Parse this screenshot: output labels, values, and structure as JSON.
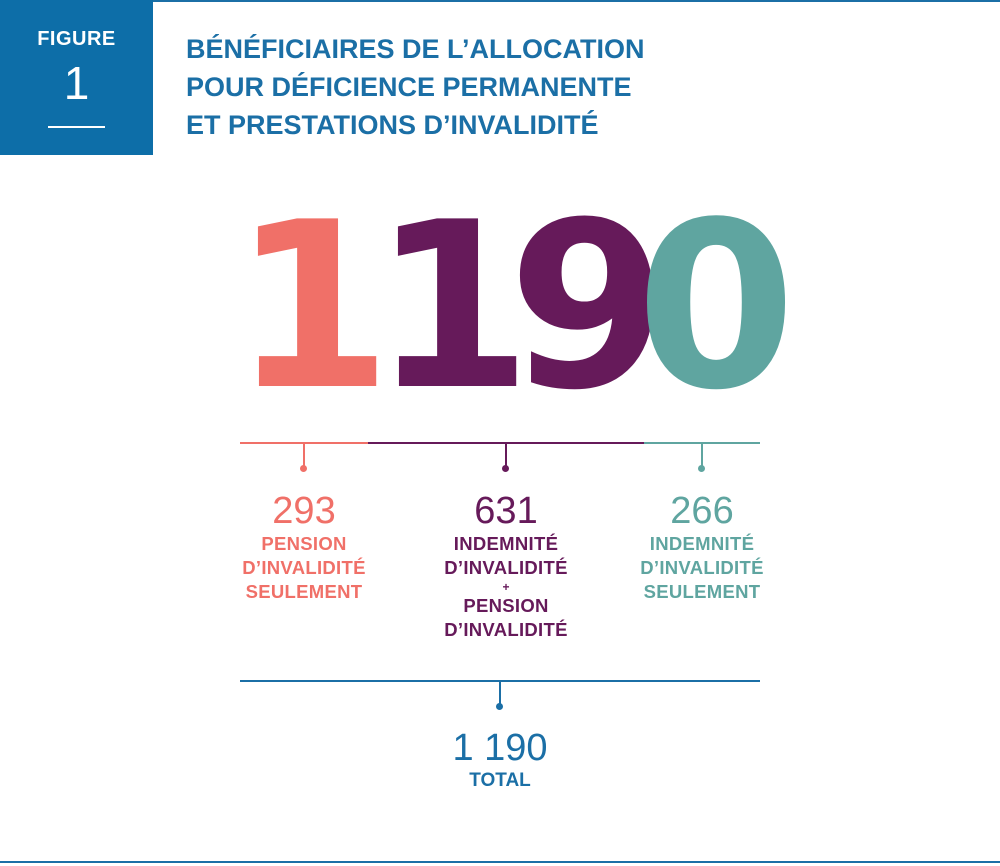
{
  "figure": {
    "label": "FIGURE",
    "number": "1",
    "title_lines": [
      "BÉNÉFICIAIRES DE L’ALLOCATION",
      "POUR DÉFICIENCE PERMANENTE",
      "ET PRESTATIONS D’INVALIDITÉ"
    ]
  },
  "big_number": {
    "digits": [
      "1",
      "1",
      "9",
      "0"
    ],
    "colors": [
      "#f07068",
      "#661a5a",
      "#661a5a",
      "#5fa5a0"
    ]
  },
  "segments": [
    {
      "value": "293",
      "label_lines": [
        "PENSION",
        "D’INVALIDITÉ",
        "SEULEMENT"
      ],
      "color": "#f07068"
    },
    {
      "value": "631",
      "label_lines": [
        "INDEMNITÉ",
        "D’INVALIDITÉ"
      ],
      "plus": "+",
      "label_lines_2": [
        "PENSION",
        "D’INVALIDITÉ"
      ],
      "color": "#661a5a"
    },
    {
      "value": "266",
      "label_lines": [
        "INDEMNITÉ",
        "D’INVALIDITÉ",
        "SEULEMENT"
      ],
      "color": "#5fa5a0"
    }
  ],
  "total": {
    "value": "1 190",
    "label": "TOTAL",
    "color": "#1b6fa6"
  }
}
